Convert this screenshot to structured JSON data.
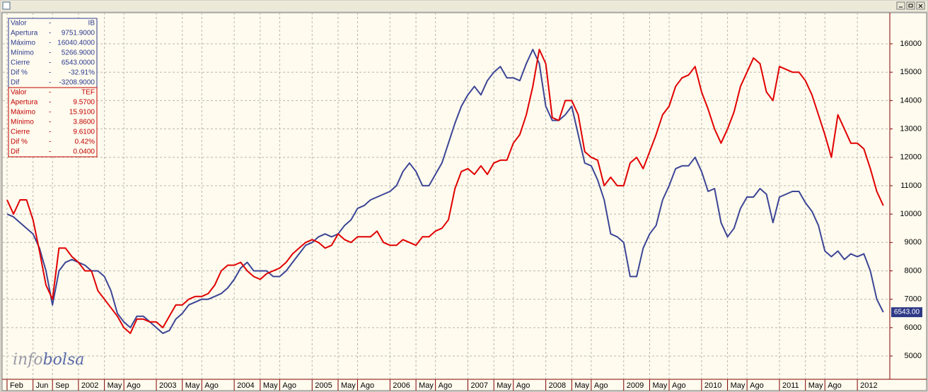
{
  "chart_data": {
    "type": "line",
    "x": [
      1,
      2,
      3,
      4,
      5,
      6,
      7,
      8,
      9,
      10,
      11,
      12,
      13,
      14,
      15,
      16,
      17,
      18,
      19,
      20,
      21,
      22,
      23,
      24,
      25,
      26,
      27,
      28,
      29,
      30,
      31,
      32,
      33,
      34,
      35,
      36,
      37,
      38,
      39,
      40,
      41,
      42,
      43,
      44,
      45,
      46,
      47,
      48,
      49,
      50,
      51,
      52,
      53,
      54,
      55,
      56,
      57,
      58,
      59,
      60,
      61,
      62,
      63,
      64,
      65,
      66,
      67,
      68,
      69,
      70,
      71,
      72,
      73,
      74,
      75,
      76,
      77,
      78,
      79,
      80,
      81,
      82,
      83,
      84,
      85,
      86,
      87,
      88,
      89,
      90,
      91,
      92,
      93,
      94,
      95,
      96,
      97,
      98,
      99,
      100,
      101,
      102,
      103,
      104,
      105,
      106,
      107,
      108,
      109,
      110,
      111,
      112,
      113,
      114,
      115,
      116,
      117,
      118,
      119,
      120,
      121,
      122,
      123,
      124,
      125,
      126,
      127,
      128,
      129,
      130,
      131,
      132,
      133,
      134,
      135,
      136
    ],
    "series": [
      {
        "name": "IB",
        "color": "#3c4596",
        "values": [
          10000,
          9900,
          9700,
          9500,
          9300,
          8800,
          8000,
          6800,
          8000,
          8300,
          8400,
          8300,
          8200,
          8000,
          8000,
          7800,
          7300,
          6500,
          6200,
          6000,
          6400,
          6400,
          6200,
          6000,
          5800,
          5900,
          6300,
          6500,
          6800,
          6900,
          7000,
          7000,
          7100,
          7200,
          7400,
          7700,
          8100,
          8300,
          8000,
          8000,
          8000,
          7800,
          7800,
          8000,
          8300,
          8600,
          8900,
          9000,
          9200,
          9300,
          9200,
          9300,
          9600,
          9800,
          10200,
          10300,
          10500,
          10600,
          10700,
          10800,
          11000,
          11500,
          11800,
          11500,
          11000,
          11000,
          11400,
          11800,
          12500,
          13200,
          13800,
          14200,
          14500,
          14200,
          14700,
          15000,
          15200,
          14800,
          14800,
          14700,
          15300,
          15800,
          15300,
          13800,
          13300,
          13300,
          13500,
          13800,
          12800,
          11800,
          11700,
          11200,
          10500,
          9300,
          9200,
          9000,
          7800,
          7800,
          8800,
          9300,
          9600,
          10500,
          11000,
          11600,
          11700,
          11700,
          12000,
          11500,
          10800,
          10900,
          9700,
          9200,
          9500,
          10200,
          10600,
          10600,
          10900,
          10700,
          9700,
          10600,
          10700,
          10800,
          10800,
          10400,
          10100,
          9600,
          8700,
          8500,
          8700,
          8400,
          8600,
          8500,
          8600,
          8000,
          7000,
          6543
        ]
      },
      {
        "name": "TEF",
        "color": "#e00000",
        "values": [
          10500,
          10000,
          10500,
          10500,
          9800,
          8700,
          7500,
          7000,
          8800,
          8800,
          8500,
          8300,
          8000,
          8000,
          7300,
          7000,
          6700,
          6400,
          6000,
          5800,
          6300,
          6300,
          6200,
          6200,
          6000,
          6400,
          6800,
          6800,
          7000,
          7100,
          7100,
          7200,
          7500,
          8000,
          8200,
          8200,
          8300,
          8000,
          7800,
          7700,
          7900,
          8000,
          8100,
          8300,
          8600,
          8800,
          9000,
          9100,
          9000,
          8800,
          8900,
          9300,
          9100,
          9000,
          9200,
          9200,
          9200,
          9400,
          9000,
          8900,
          8900,
          9100,
          9000,
          8900,
          9200,
          9200,
          9400,
          9500,
          9800,
          10900,
          11500,
          11600,
          11400,
          11700,
          11400,
          11800,
          11900,
          11900,
          12500,
          12800,
          13500,
          14500,
          15800,
          15300,
          13400,
          13300,
          14000,
          14000,
          13500,
          12200,
          12000,
          11900,
          11000,
          11300,
          11000,
          11000,
          11800,
          12000,
          11600,
          12200,
          12800,
          13500,
          13800,
          14500,
          14800,
          14900,
          15200,
          14300,
          13700,
          13000,
          12500,
          13000,
          13600,
          14500,
          15000,
          15500,
          15300,
          14300,
          14000,
          15200,
          15100,
          15000,
          15000,
          14700,
          14200,
          13500,
          12800,
          12000,
          13500,
          13000,
          12500,
          12500,
          12300,
          11600,
          10800,
          10300
        ]
      }
    ],
    "xlim": [
      0.35,
      137
    ],
    "xticks": [
      {
        "value": 1,
        "label": "Feb"
      },
      {
        "value": 5,
        "label": "Jun"
      },
      {
        "value": 8,
        "label": "Sep"
      },
      {
        "value": 12,
        "label": "2002"
      },
      {
        "value": 16,
        "label": "May"
      },
      {
        "value": 19,
        "label": "Ago"
      },
      {
        "value": 24,
        "label": "2003"
      },
      {
        "value": 28,
        "label": "May"
      },
      {
        "value": 31,
        "label": "Ago"
      },
      {
        "value": 36,
        "label": "2004"
      },
      {
        "value": 40,
        "label": "May"
      },
      {
        "value": 43,
        "label": "Ago"
      },
      {
        "value": 48,
        "label": "2005"
      },
      {
        "value": 52,
        "label": "May"
      },
      {
        "value": 55,
        "label": "Ago"
      },
      {
        "value": 60,
        "label": "2006"
      },
      {
        "value": 64,
        "label": "May"
      },
      {
        "value": 67,
        "label": "Ago"
      },
      {
        "value": 72,
        "label": "2007"
      },
      {
        "value": 76,
        "label": "May"
      },
      {
        "value": 79,
        "label": "Ago"
      },
      {
        "value": 84,
        "label": "2008"
      },
      {
        "value": 88,
        "label": "May"
      },
      {
        "value": 91,
        "label": "Ago"
      },
      {
        "value": 96,
        "label": "2009"
      },
      {
        "value": 100,
        "label": "May"
      },
      {
        "value": 103,
        "label": "Ago"
      },
      {
        "value": 108,
        "label": "2010"
      },
      {
        "value": 112,
        "label": "May"
      },
      {
        "value": 115,
        "label": "Ago"
      },
      {
        "value": 120,
        "label": "2011"
      },
      {
        "value": 124,
        "label": "May"
      },
      {
        "value": 127,
        "label": "Ago"
      },
      {
        "value": 132,
        "label": "2012"
      }
    ],
    "ylim": [
      4180,
      17095
    ],
    "yticks": [
      5000,
      6000,
      7000,
      8000,
      9000,
      10000,
      11000,
      12000,
      13000,
      14000,
      15000,
      16000
    ],
    "grid": true,
    "price_tag": "6543.00",
    "info_boxes": [
      {
        "color": "#2b3a8f",
        "rows": [
          [
            "Valor",
            "-",
            "IB"
          ],
          [
            "Apertura",
            "-",
            "9751.9000"
          ],
          [
            "Máximo",
            "-",
            "16040.4000"
          ],
          [
            "Mínimo",
            "-",
            "5266.9000"
          ],
          [
            "Cierre",
            "-",
            "6543.0000"
          ],
          [
            "Dif %",
            "-",
            "-32.91%"
          ],
          [
            "Dif",
            "-",
            "-3208.9000"
          ]
        ]
      },
      {
        "color": "#c00000",
        "rows": [
          [
            "Valor",
            "-",
            "TEF"
          ],
          [
            "Apertura",
            "-",
            "9.5700"
          ],
          [
            "Máximo",
            "-",
            "15.9100"
          ],
          [
            "Mínimo",
            "-",
            "3.8600"
          ],
          [
            "Cierre",
            "-",
            "9.6100"
          ],
          [
            "Dif %",
            "-",
            "0.42%"
          ],
          [
            "Dif",
            "-",
            "0.0400"
          ]
        ]
      }
    ],
    "watermark": [
      "info",
      "bolsa"
    ]
  }
}
